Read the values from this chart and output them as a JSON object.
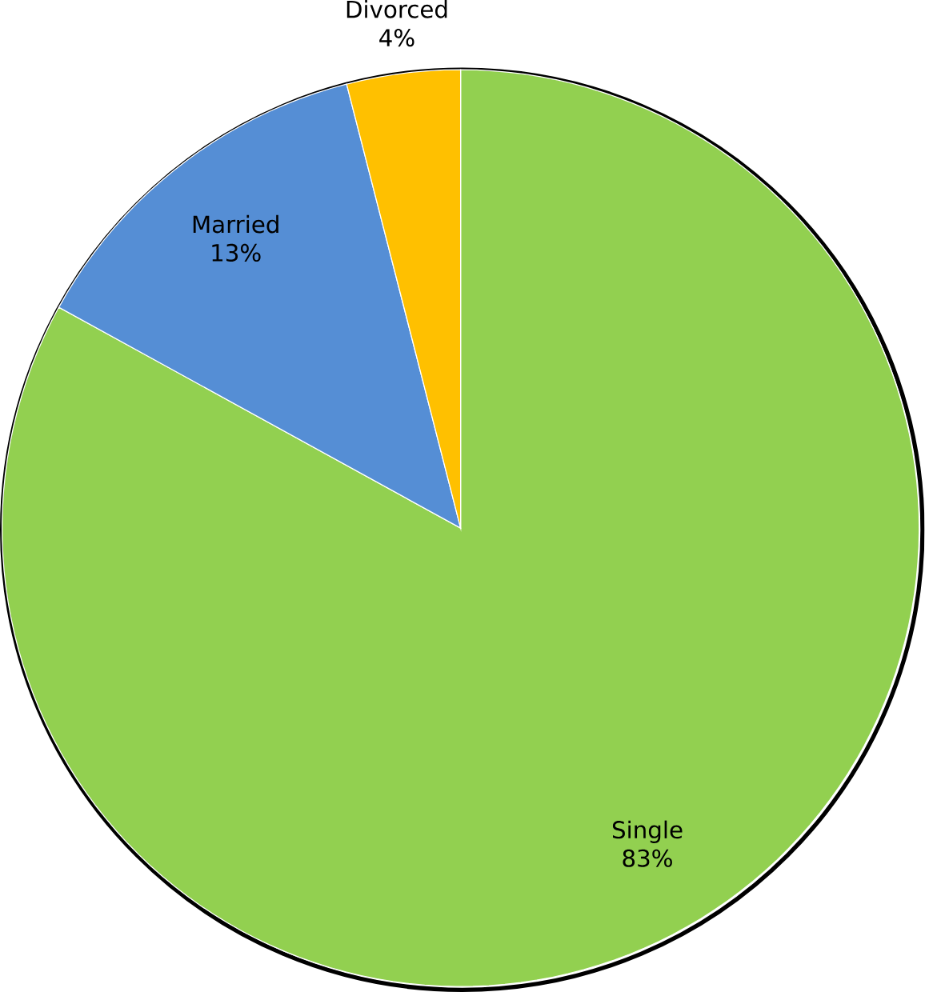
{
  "chart_data": {
    "type": "pie",
    "categories": [
      "Single",
      "Married",
      "Divorced"
    ],
    "values": [
      83,
      13,
      4
    ],
    "value_labels": [
      "83%",
      "13%",
      "4%"
    ],
    "colors": [
      "#92d050",
      "#558ed5",
      "#ffc000"
    ]
  }
}
